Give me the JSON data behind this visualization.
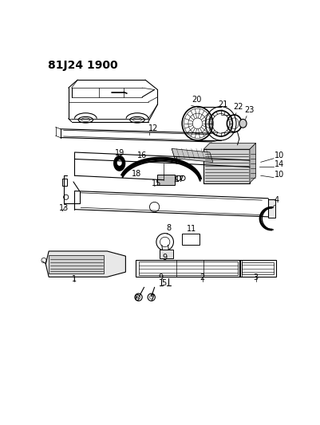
{
  "title": "81J24 1900",
  "bg": "#ffffff",
  "lw_thin": 0.5,
  "lw_med": 0.8,
  "lw_thick": 1.2,
  "label_fs": 7,
  "title_fs": 10
}
